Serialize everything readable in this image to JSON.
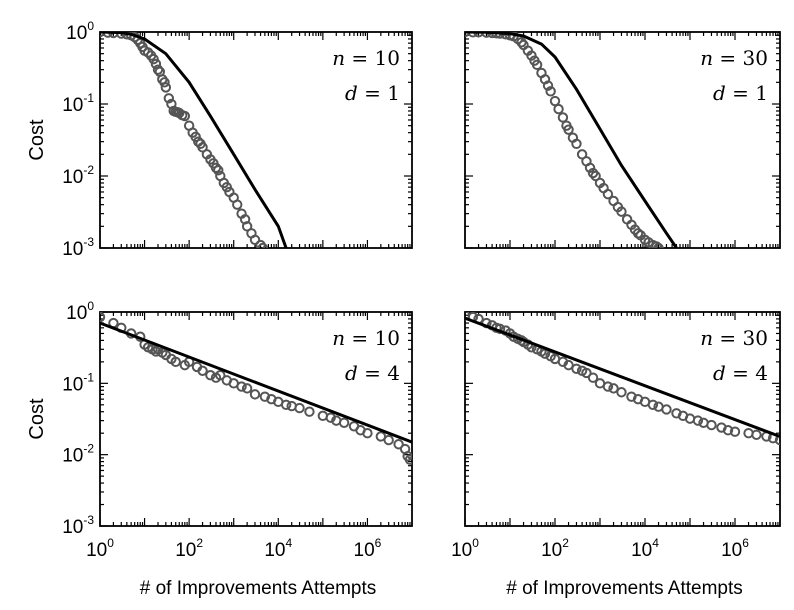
{
  "chart_data": {
    "type": "scatter",
    "x_scale": "log",
    "y_scale": "log",
    "xlim": [
      1,
      10000000
    ],
    "ylim": [
      0.001,
      1
    ],
    "x_ticks": [
      {
        "value": 1,
        "base": "10",
        "exp": "0"
      },
      {
        "value": 100,
        "base": "10",
        "exp": "2"
      },
      {
        "value": 10000,
        "base": "10",
        "exp": "4"
      },
      {
        "value": 1000000,
        "base": "10",
        "exp": "6"
      }
    ],
    "y_ticks": [
      {
        "value": 1,
        "base": "10",
        "exp": "0"
      },
      {
        "value": 0.1,
        "base": "10",
        "exp": "-1"
      },
      {
        "value": 0.01,
        "base": "10",
        "exp": "-2"
      },
      {
        "value": 0.001,
        "base": "10",
        "exp": "-3"
      }
    ],
    "ylabel": "Cost",
    "xlabel": "# of Improvements Attempts",
    "marker_color": "#555555",
    "line_color": "#000000",
    "panels": [
      {
        "n": "10",
        "d": "1",
        "annotation": [
          [
            "n",
            "= 10"
          ],
          [
            "d",
            "= 1"
          ]
        ],
        "line": [
          [
            1,
            1
          ],
          [
            3,
            0.98
          ],
          [
            5,
            0.93
          ],
          [
            10,
            0.8
          ],
          [
            30,
            0.5
          ],
          [
            100,
            0.2
          ],
          [
            300,
            0.068
          ],
          [
            1000,
            0.02
          ],
          [
            3000,
            0.0065
          ],
          [
            10000,
            0.002
          ],
          [
            15000,
            0.001
          ]
        ],
        "points": [
          [
            1,
            1
          ],
          [
            1.5,
            0.98
          ],
          [
            2,
            0.97
          ],
          [
            3,
            0.95
          ],
          [
            4,
            0.93
          ],
          [
            5,
            0.9
          ],
          [
            6,
            0.85
          ],
          [
            7,
            0.78
          ],
          [
            8,
            0.7
          ],
          [
            9,
            0.62
          ],
          [
            10,
            0.55
          ],
          [
            12,
            0.52
          ],
          [
            14,
            0.47
          ],
          [
            16,
            0.42
          ],
          [
            18,
            0.36
          ],
          [
            20,
            0.3
          ],
          [
            22,
            0.28
          ],
          [
            25,
            0.22
          ],
          [
            28,
            0.2
          ],
          [
            30,
            0.17
          ],
          [
            35,
            0.12
          ],
          [
            40,
            0.1
          ],
          [
            45,
            0.08
          ],
          [
            50,
            0.078
          ],
          [
            55,
            0.077
          ],
          [
            60,
            0.075
          ],
          [
            70,
            0.07
          ],
          [
            80,
            0.068
          ],
          [
            100,
            0.05
          ],
          [
            120,
            0.04
          ],
          [
            140,
            0.035
          ],
          [
            160,
            0.03
          ],
          [
            180,
            0.028
          ],
          [
            200,
            0.025
          ],
          [
            250,
            0.02
          ],
          [
            300,
            0.017
          ],
          [
            350,
            0.015
          ],
          [
            400,
            0.013
          ],
          [
            450,
            0.012
          ],
          [
            500,
            0.01
          ],
          [
            600,
            0.008
          ],
          [
            700,
            0.007
          ],
          [
            800,
            0.006
          ],
          [
            1000,
            0.005
          ],
          [
            1200,
            0.004
          ],
          [
            1500,
            0.003
          ],
          [
            1800,
            0.0025
          ],
          [
            2000,
            0.002
          ],
          [
            2500,
            0.0016
          ],
          [
            3000,
            0.0013
          ],
          [
            4000,
            0.0011
          ],
          [
            4500,
            0.001
          ]
        ]
      },
      {
        "n": "30",
        "d": "1",
        "annotation": [
          [
            "n",
            "= 30"
          ],
          [
            "d",
            "= 1"
          ]
        ],
        "line": [
          [
            1,
            1
          ],
          [
            3,
            0.99
          ],
          [
            10,
            0.95
          ],
          [
            20,
            0.88
          ],
          [
            50,
            0.68
          ],
          [
            100,
            0.45
          ],
          [
            300,
            0.16
          ],
          [
            1000,
            0.045
          ],
          [
            3000,
            0.014
          ],
          [
            10000,
            0.0045
          ],
          [
            30000,
            0.0016
          ],
          [
            50000,
            0.001
          ]
        ],
        "points": [
          [
            1,
            1
          ],
          [
            1.5,
            0.99
          ],
          [
            2,
            0.99
          ],
          [
            3,
            0.98
          ],
          [
            4,
            0.97
          ],
          [
            5,
            0.96
          ],
          [
            6,
            0.95
          ],
          [
            8,
            0.93
          ],
          [
            10,
            0.9
          ],
          [
            12,
            0.87
          ],
          [
            15,
            0.8
          ],
          [
            18,
            0.72
          ],
          [
            20,
            0.66
          ],
          [
            25,
            0.55
          ],
          [
            30,
            0.47
          ],
          [
            35,
            0.4
          ],
          [
            40,
            0.35
          ],
          [
            50,
            0.27
          ],
          [
            60,
            0.22
          ],
          [
            70,
            0.18
          ],
          [
            80,
            0.15
          ],
          [
            100,
            0.11
          ],
          [
            120,
            0.085
          ],
          [
            150,
            0.065
          ],
          [
            180,
            0.05
          ],
          [
            200,
            0.044
          ],
          [
            250,
            0.034
          ],
          [
            300,
            0.028
          ],
          [
            400,
            0.02
          ],
          [
            500,
            0.016
          ],
          [
            600,
            0.013
          ],
          [
            700,
            0.011
          ],
          [
            800,
            0.01
          ],
          [
            1000,
            0.008
          ],
          [
            1200,
            0.0068
          ],
          [
            1500,
            0.0056
          ],
          [
            2000,
            0.0045
          ],
          [
            2500,
            0.0037
          ],
          [
            3000,
            0.0032
          ],
          [
            4000,
            0.0025
          ],
          [
            5000,
            0.0021
          ],
          [
            6000,
            0.0018
          ],
          [
            7000,
            0.0016
          ],
          [
            8000,
            0.0015
          ],
          [
            10000,
            0.0013
          ],
          [
            12000,
            0.0012
          ],
          [
            15000,
            0.0011
          ],
          [
            18000,
            0.00105
          ],
          [
            20000,
            0.001
          ]
        ]
      },
      {
        "n": "10",
        "d": "4",
        "annotation": [
          [
            "n",
            "= 10"
          ],
          [
            "d",
            "= 4"
          ]
        ],
        "line": [
          [
            1,
            0.7
          ],
          [
            10000000,
            0.015
          ]
        ],
        "points": [
          [
            1,
            0.85
          ],
          [
            2,
            0.7
          ],
          [
            3,
            0.6
          ],
          [
            5,
            0.5
          ],
          [
            8,
            0.45
          ],
          [
            10,
            0.35
          ],
          [
            12,
            0.32
          ],
          [
            15,
            0.3
          ],
          [
            18,
            0.28
          ],
          [
            20,
            0.3
          ],
          [
            25,
            0.27
          ],
          [
            30,
            0.25
          ],
          [
            40,
            0.22
          ],
          [
            50,
            0.2
          ],
          [
            80,
            0.18
          ],
          [
            100,
            0.2
          ],
          [
            150,
            0.17
          ],
          [
            200,
            0.15
          ],
          [
            300,
            0.13
          ],
          [
            400,
            0.12
          ],
          [
            500,
            0.13
          ],
          [
            700,
            0.11
          ],
          [
            1000,
            0.1
          ],
          [
            1500,
            0.09
          ],
          [
            2000,
            0.085
          ],
          [
            3000,
            0.07
          ],
          [
            5000,
            0.065
          ],
          [
            7000,
            0.06
          ],
          [
            10000,
            0.055
          ],
          [
            15000,
            0.05
          ],
          [
            20000,
            0.048
          ],
          [
            30000,
            0.045
          ],
          [
            50000,
            0.04
          ],
          [
            100000,
            0.035
          ],
          [
            150000,
            0.033
          ],
          [
            200000,
            0.03
          ],
          [
            300000,
            0.028
          ],
          [
            500000,
            0.025
          ],
          [
            700000,
            0.022
          ],
          [
            1000000,
            0.02
          ],
          [
            2000000,
            0.018
          ],
          [
            3000000,
            0.016
          ],
          [
            5000000,
            0.014
          ],
          [
            7000000,
            0.012
          ],
          [
            8000000,
            0.0095
          ],
          [
            9000000,
            0.0085
          ]
        ]
      },
      {
        "n": "30",
        "d": "4",
        "annotation": [
          [
            "n",
            "= 30"
          ],
          [
            "d",
            "= 4"
          ]
        ],
        "line": [
          [
            1,
            0.82
          ],
          [
            10000000,
            0.018
          ]
        ],
        "points": [
          [
            1,
            0.9
          ],
          [
            1.5,
            0.85
          ],
          [
            2,
            0.8
          ],
          [
            3,
            0.7
          ],
          [
            4,
            0.65
          ],
          [
            5,
            0.6
          ],
          [
            6,
            0.58
          ],
          [
            8,
            0.55
          ],
          [
            10,
            0.5
          ],
          [
            12,
            0.45
          ],
          [
            15,
            0.42
          ],
          [
            18,
            0.4
          ],
          [
            20,
            0.38
          ],
          [
            25,
            0.35
          ],
          [
            30,
            0.32
          ],
          [
            40,
            0.3
          ],
          [
            50,
            0.28
          ],
          [
            60,
            0.26
          ],
          [
            80,
            0.24
          ],
          [
            100,
            0.22
          ],
          [
            150,
            0.2
          ],
          [
            200,
            0.18
          ],
          [
            300,
            0.16
          ],
          [
            400,
            0.15
          ],
          [
            500,
            0.14
          ],
          [
            700,
            0.12
          ],
          [
            1000,
            0.1
          ],
          [
            1500,
            0.09
          ],
          [
            2000,
            0.085
          ],
          [
            3000,
            0.075
          ],
          [
            5000,
            0.065
          ],
          [
            7000,
            0.06
          ],
          [
            10000,
            0.055
          ],
          [
            15000,
            0.05
          ],
          [
            20000,
            0.047
          ],
          [
            30000,
            0.043
          ],
          [
            50000,
            0.038
          ],
          [
            70000,
            0.035
          ],
          [
            100000,
            0.032
          ],
          [
            150000,
            0.03
          ],
          [
            200000,
            0.028
          ],
          [
            300000,
            0.026
          ],
          [
            500000,
            0.024
          ],
          [
            700000,
            0.022
          ],
          [
            1000000,
            0.021
          ],
          [
            2000000,
            0.02
          ],
          [
            3000000,
            0.019
          ],
          [
            5000000,
            0.018
          ],
          [
            7000000,
            0.017
          ],
          [
            10000000,
            0.016
          ]
        ]
      }
    ]
  }
}
